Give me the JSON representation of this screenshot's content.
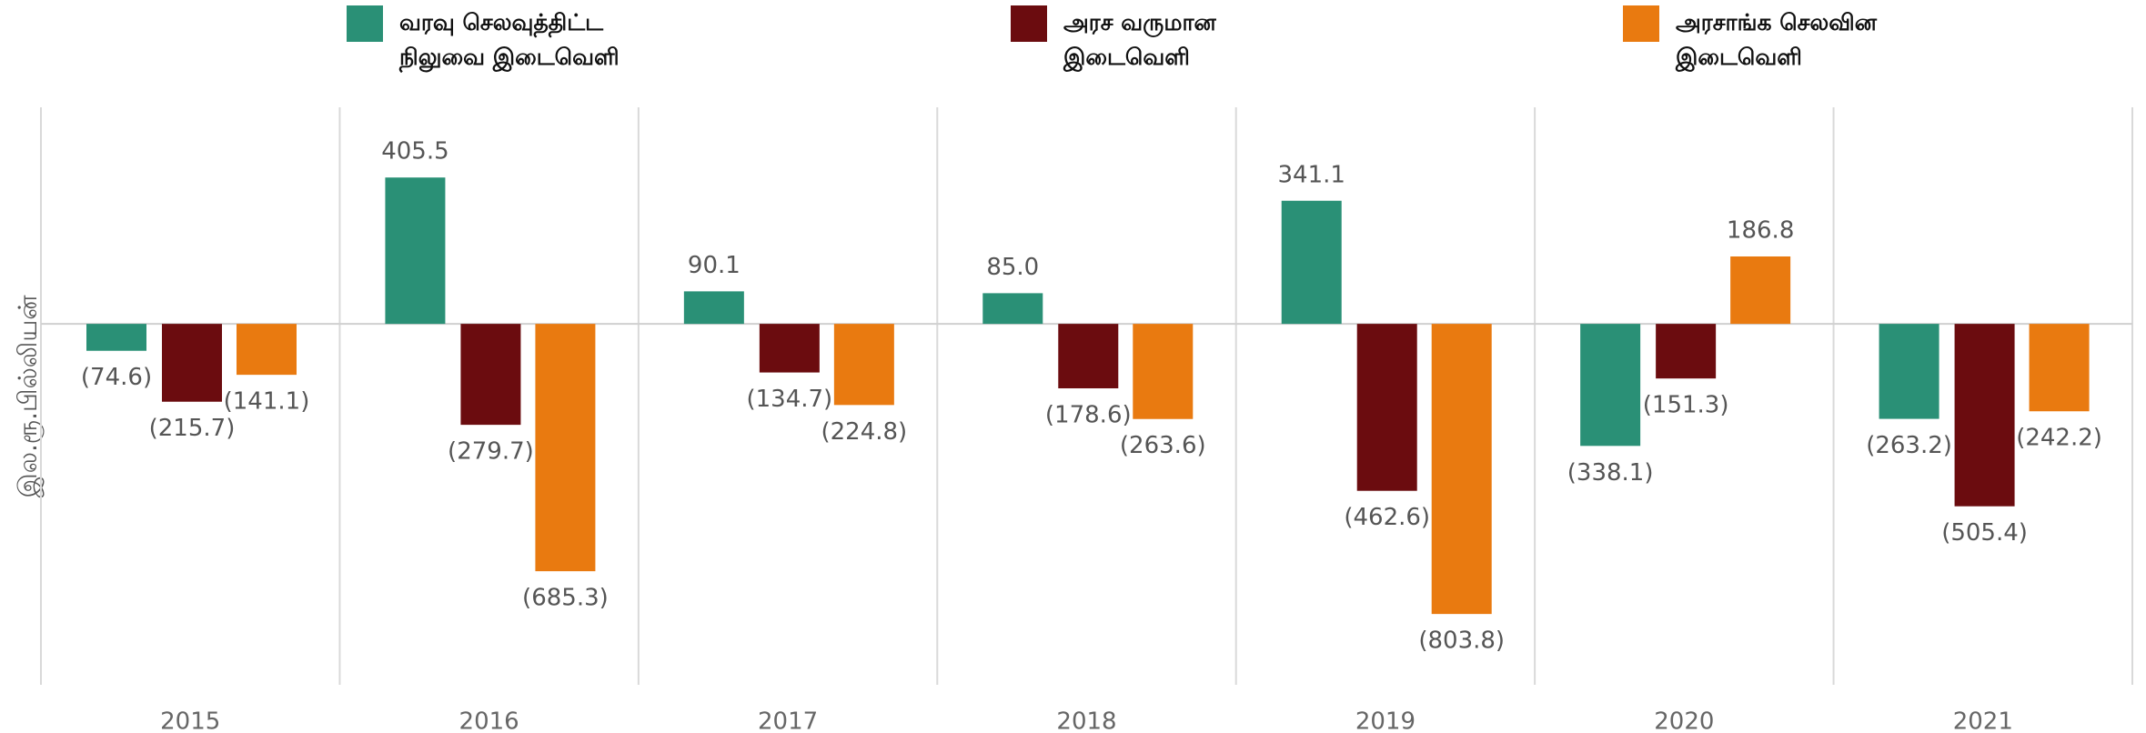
{
  "chart_data": {
    "type": "bar",
    "y_label": "இல.ரூ.பில்லியன்",
    "categories": [
      "2015",
      "2016",
      "2017",
      "2018",
      "2019",
      "2020",
      "2021"
    ],
    "series": [
      {
        "name": "வரவு செலவுத்திட்ட நிலுவை இடைவெளி",
        "color": "#2a9076",
        "values": [
          -74.6,
          405.5,
          90.1,
          85.0,
          341.1,
          -338.1,
          -263.2
        ],
        "value_labels": [
          "(74.6)",
          "405.5",
          "90.1",
          "85.0",
          "341.1",
          "(338.1)",
          "(263.2)"
        ]
      },
      {
        "name": "அரச வருமான இடைவெளி",
        "color": "#6b0c0f",
        "values": [
          -215.7,
          -279.7,
          -134.7,
          -178.6,
          -462.6,
          -151.3,
          -505.4
        ],
        "value_labels": [
          "(215.7)",
          "(279.7)",
          "(134.7)",
          "(178.6)",
          "(462.6)",
          "(151.3)",
          "(505.4)"
        ]
      },
      {
        "name": "அரசாங்க செலவின இடைவெளி",
        "color": "#e97a10",
        "values": [
          -141.1,
          -685.3,
          -224.8,
          -263.6,
          -803.8,
          186.8,
          -242.2
        ],
        "value_labels": [
          "(141.1)",
          "(685.3)",
          "(224.8)",
          "(263.6)",
          "(803.8)",
          "186.8",
          "(242.2)"
        ]
      }
    ],
    "ylim": [
      -1000,
      600
    ]
  }
}
